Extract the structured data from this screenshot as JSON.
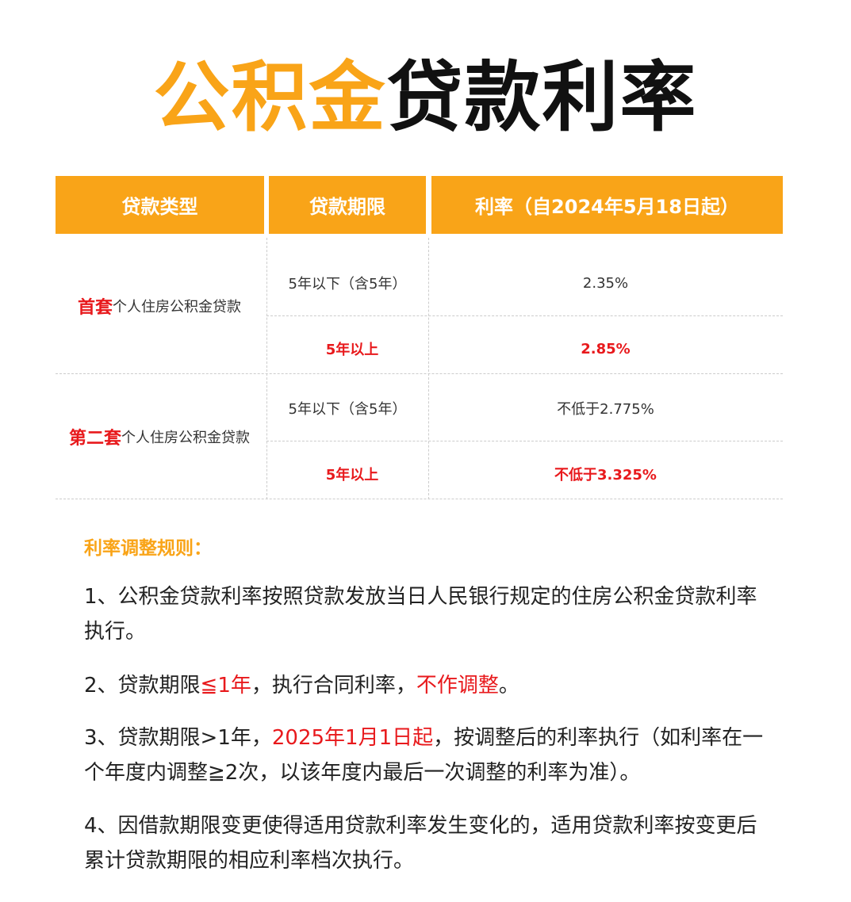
{
  "title": {
    "part1": "公积金",
    "part2": "贷款利率"
  },
  "table": {
    "headers": [
      "贷款类型",
      "贷款期限",
      "利率（自2024年5月18日起）"
    ],
    "groups": [
      {
        "type_em": "首套",
        "type_rest": "个人住房公积金贷款",
        "rows": [
          {
            "term": "5年以下（含5年）",
            "rate": "2.35%",
            "highlight": false
          },
          {
            "term": "5年以上",
            "rate": "2.85%",
            "highlight": true
          }
        ]
      },
      {
        "type_em": "第二套",
        "type_rest": "个人住房公积金贷款",
        "rows": [
          {
            "term": "5年以下（含5年）",
            "rate": "不低于2.775%",
            "highlight": false
          },
          {
            "term": "5年以上",
            "rate": "不低于3.325%",
            "highlight": true
          }
        ]
      }
    ]
  },
  "rules": {
    "heading": "利率调整规则：",
    "p1": "1、公积金贷款利率按照贷款发放当日人民银行规定的住房公积金贷款利率执行。",
    "p2": {
      "a": "2、贷款期限",
      "b": "≦1年",
      "c": "，执行合同利率，",
      "d": "不作调整",
      "e": "。"
    },
    "p3": {
      "a": "3、贷款期限>1年，",
      "b": "2025年1月1日起",
      "c": "，按调整后的利率执行（如利率在一个年度内调整≧2次，以该年度内最后一次调整的利率为准）。"
    },
    "p4": "4、因借款期限变更使得适用贷款利率发生变化的，适用贷款利率按变更后累计贷款期限的相应利率档次执行。"
  },
  "colors": {
    "accent": "#F9A418",
    "highlight": "#E8191C"
  }
}
